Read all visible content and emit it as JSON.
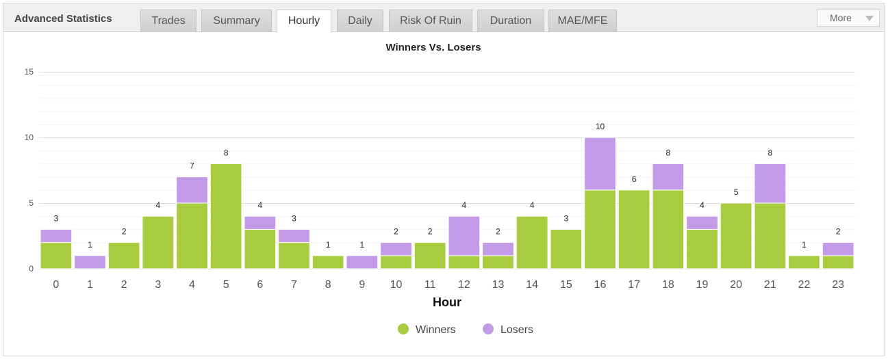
{
  "header": {
    "title": "Advanced Statistics",
    "tabs": [
      {
        "label": "Trades",
        "active": false
      },
      {
        "label": "Summary",
        "active": false
      },
      {
        "label": "Hourly",
        "active": true
      },
      {
        "label": "Daily",
        "active": false
      },
      {
        "label": "Risk Of Ruin",
        "active": false
      },
      {
        "label": "Duration",
        "active": false
      },
      {
        "label": "MAE/MFE",
        "active": false
      }
    ],
    "more_label": "More"
  },
  "colors": {
    "winners": "#a8cc3f",
    "losers": "#c39ae8"
  },
  "chart_data": {
    "type": "bar",
    "stacked": true,
    "title": "Winners Vs. Losers",
    "xlabel": "Hour",
    "ylabel": "",
    "ylim": [
      0,
      15
    ],
    "yticks": [
      0,
      5,
      10,
      15
    ],
    "grid": true,
    "legend_position": "bottom-center",
    "categories": [
      "0",
      "1",
      "2",
      "3",
      "4",
      "5",
      "6",
      "7",
      "8",
      "9",
      "10",
      "11",
      "12",
      "13",
      "14",
      "15",
      "16",
      "17",
      "18",
      "19",
      "20",
      "21",
      "22",
      "23"
    ],
    "series": [
      {
        "name": "Winners",
        "values": [
          2,
          0,
          2,
          4,
          5,
          8,
          3,
          2,
          1,
          0,
          1,
          2,
          1,
          1,
          4,
          3,
          6,
          6,
          6,
          3,
          5,
          5,
          1,
          1
        ]
      },
      {
        "name": "Losers",
        "values": [
          1,
          1,
          0,
          0,
          2,
          0,
          1,
          1,
          0,
          1,
          1,
          0,
          3,
          1,
          0,
          0,
          4,
          0,
          2,
          1,
          0,
          3,
          0,
          1
        ]
      }
    ],
    "totals": [
      3,
      1,
      2,
      4,
      7,
      8,
      4,
      3,
      1,
      1,
      2,
      2,
      4,
      2,
      4,
      3,
      10,
      6,
      8,
      4,
      5,
      8,
      1,
      2
    ]
  }
}
